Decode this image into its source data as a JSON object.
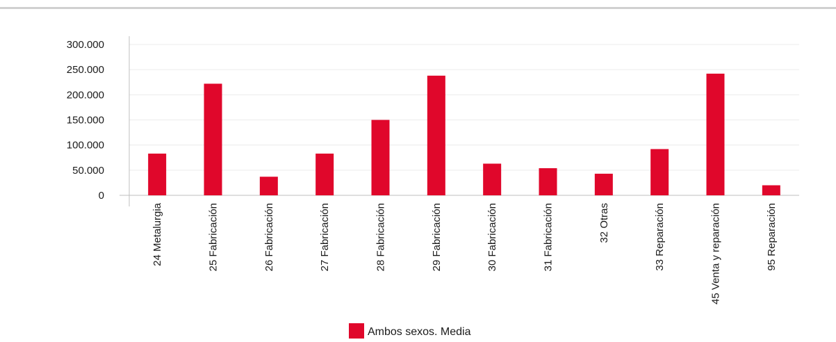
{
  "chart_data": {
    "type": "bar",
    "categories": [
      "24 Metalurgia",
      "25 Fabricación",
      "26 Fabricación",
      "27 Fabricación",
      "28 Fabricación",
      "29 Fabricación",
      "30 Fabricación",
      "31 Fabricación",
      "32 Otras",
      "33 Reparación",
      "45 Venta y reparación",
      "95 Reparación"
    ],
    "series": [
      {
        "name": "Ambos sexos. Media",
        "color": "#e0072b",
        "values": [
          83000,
          222000,
          37000,
          83000,
          150000,
          238000,
          63000,
          54000,
          43000,
          92000,
          242000,
          20000
        ]
      }
    ],
    "yticks": [
      "0",
      "50.000",
      "100.000",
      "150.000",
      "200.000",
      "250.000",
      "300.000"
    ],
    "ylim": [
      0,
      300000
    ],
    "grid": true,
    "legend_position": "bottom-center"
  }
}
